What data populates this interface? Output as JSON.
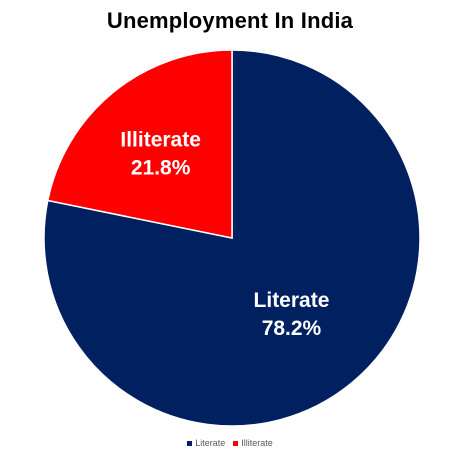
{
  "chart_data": {
    "type": "pie",
    "title": "Unemployment In India",
    "categories": [
      "Literate",
      "Illiterate"
    ],
    "values": [
      78.2,
      21.8
    ],
    "value_labels": [
      "78.2%",
      "21.8%"
    ],
    "colors": [
      "#002060",
      "#ff0000"
    ],
    "start_angle_deg": 0,
    "direction": "clockwise",
    "legend": {
      "position": "bottom",
      "entries": [
        "Literate",
        "Illiterate"
      ]
    }
  }
}
